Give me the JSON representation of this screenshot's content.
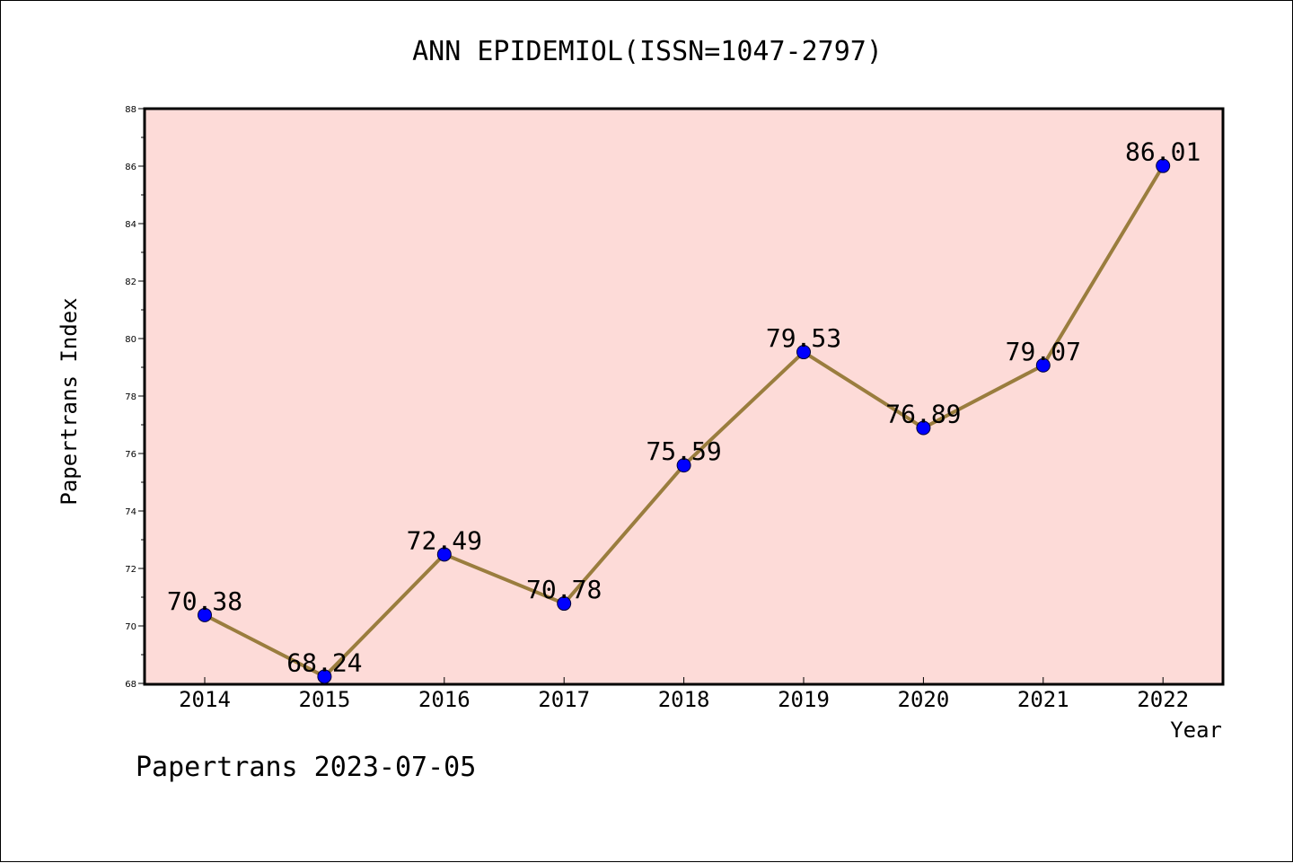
{
  "chart_data": {
    "type": "line",
    "title": "ANN EPIDEMIOL(ISSN=1047-2797)",
    "xlabel": "Year",
    "ylabel": "Papertrans Index",
    "footer": "Papertrans 2023-07-05",
    "categories": [
      "2014",
      "2015",
      "2016",
      "2017",
      "2018",
      "2019",
      "2020",
      "2021",
      "2022"
    ],
    "values": [
      70.38,
      68.24,
      72.49,
      70.78,
      75.59,
      79.53,
      76.89,
      79.07,
      86.01
    ],
    "data_labels": [
      "70.38",
      "68.24",
      "72.49",
      "70.78",
      "75.59",
      "79.53",
      "76.89",
      "79.07",
      "86.01"
    ],
    "ylim": [
      68,
      88
    ],
    "yticks": [
      "68",
      "70",
      "72",
      "74",
      "76",
      "78",
      "80",
      "82",
      "84",
      "86",
      "88"
    ],
    "grid": false,
    "colors": {
      "plot_background": "#fddbd8",
      "line": "#9a7d3e",
      "marker": "#0000ff",
      "axis": "#000000"
    }
  }
}
